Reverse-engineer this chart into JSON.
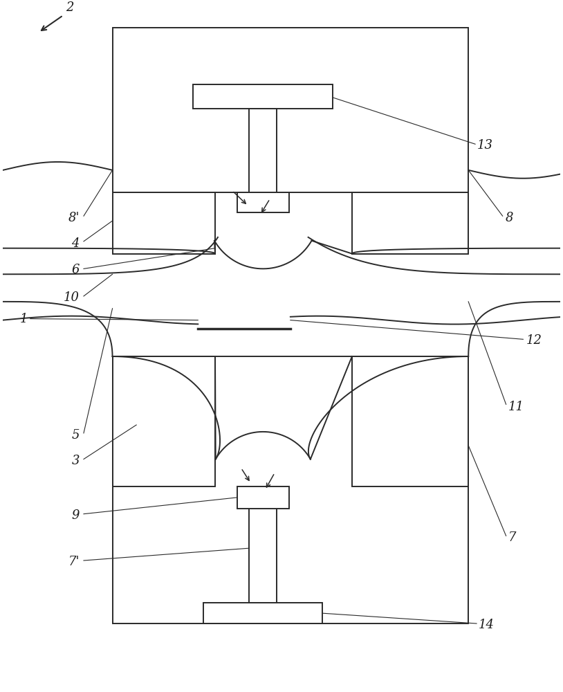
{
  "bg_color": "#ffffff",
  "line_color": "#2a2a2a",
  "lw": 1.4,
  "fig_w": 8.14,
  "fig_h": 10.0,
  "dpi": 100
}
